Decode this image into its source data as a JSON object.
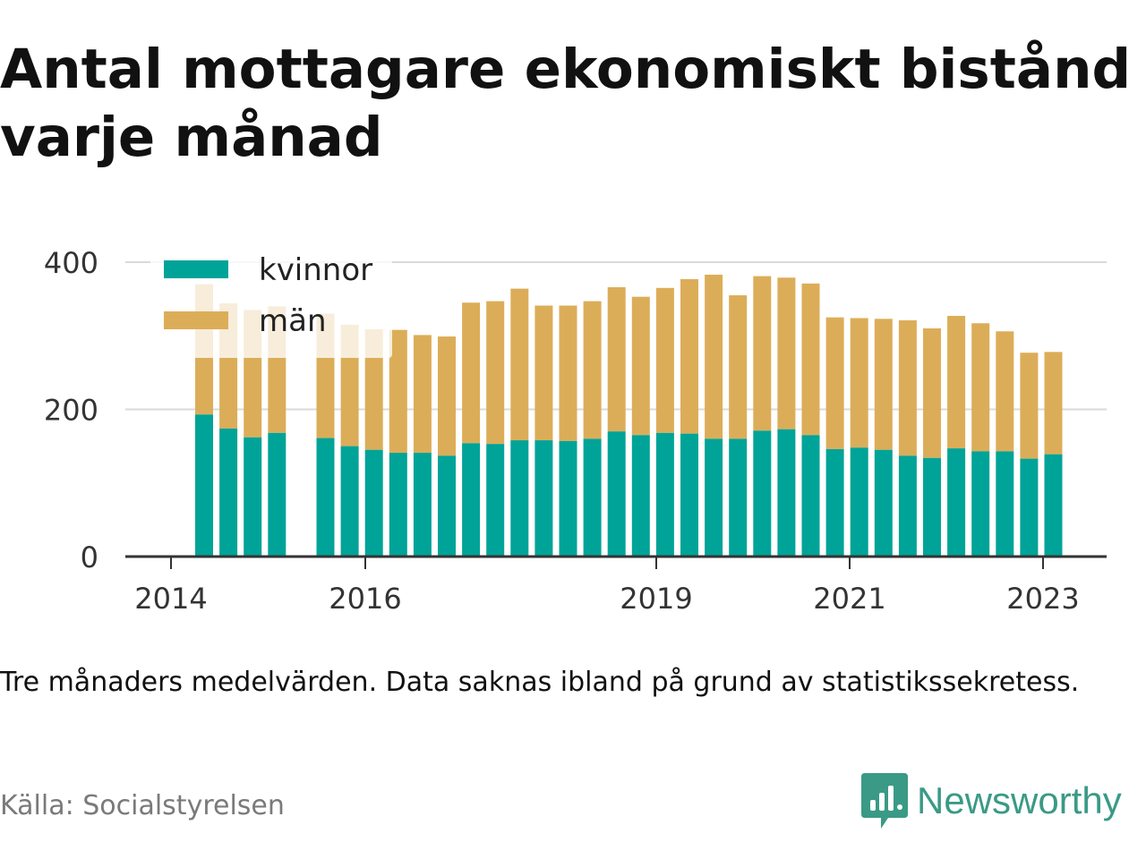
{
  "title": "Antal mottagare ekonomiskt bistånd varje månad",
  "note": "Tre månaders medelvärden. Data saknas ibland på grund av statistikssekretess.",
  "source": "Källa: Socialstyrelsen",
  "brand": {
    "name": "Newsworthy",
    "icon": "bar-chart-speech-bubble-icon",
    "color": "#3a9a86"
  },
  "colors": {
    "kvinnor": "#00a398",
    "man": "#dcad58",
    "grid": "#d9d9d9",
    "axis": "#333333"
  },
  "chart_data": {
    "type": "bar",
    "stacked": true,
    "ylim": [
      0,
      400
    ],
    "y_ticks": [
      0,
      200,
      400
    ],
    "x_tick_labels": [
      "2014",
      "2016",
      "2019",
      "2021",
      "2023"
    ],
    "legend": [
      "kvinnor",
      "män"
    ],
    "legend_position": "top-left",
    "grid": true,
    "bars": [
      {
        "kvinnor": 193,
        "man": 177
      },
      {
        "kvinnor": 174,
        "man": 170
      },
      {
        "kvinnor": 162,
        "man": 173
      },
      {
        "kvinnor": 168,
        "man": 172
      },
      {
        "kvinnor": null,
        "man": null
      },
      {
        "kvinnor": 161,
        "man": 169
      },
      {
        "kvinnor": 150,
        "man": 165
      },
      {
        "kvinnor": 145,
        "man": 164
      },
      {
        "kvinnor": 141,
        "man": 167
      },
      {
        "kvinnor": 141,
        "man": 160
      },
      {
        "kvinnor": 137,
        "man": 162
      },
      {
        "kvinnor": 154,
        "man": 191
      },
      {
        "kvinnor": 153,
        "man": 194
      },
      {
        "kvinnor": 158,
        "man": 206
      },
      {
        "kvinnor": 158,
        "man": 183
      },
      {
        "kvinnor": 157,
        "man": 184
      },
      {
        "kvinnor": 160,
        "man": 187
      },
      {
        "kvinnor": 170,
        "man": 196
      },
      {
        "kvinnor": 165,
        "man": 188
      },
      {
        "kvinnor": 168,
        "man": 197
      },
      {
        "kvinnor": 167,
        "man": 210
      },
      {
        "kvinnor": 160,
        "man": 223
      },
      {
        "kvinnor": 160,
        "man": 195
      },
      {
        "kvinnor": 171,
        "man": 210
      },
      {
        "kvinnor": 173,
        "man": 206
      },
      {
        "kvinnor": 165,
        "man": 206
      },
      {
        "kvinnor": 146,
        "man": 179
      },
      {
        "kvinnor": 148,
        "man": 176
      },
      {
        "kvinnor": 145,
        "man": 178
      },
      {
        "kvinnor": 137,
        "man": 184
      },
      {
        "kvinnor": 134,
        "man": 176
      },
      {
        "kvinnor": 147,
        "man": 180
      },
      {
        "kvinnor": 143,
        "man": 174
      },
      {
        "kvinnor": 143,
        "man": 163
      },
      {
        "kvinnor": 133,
        "man": 144
      },
      {
        "kvinnor": 139,
        "man": 139
      }
    ]
  }
}
